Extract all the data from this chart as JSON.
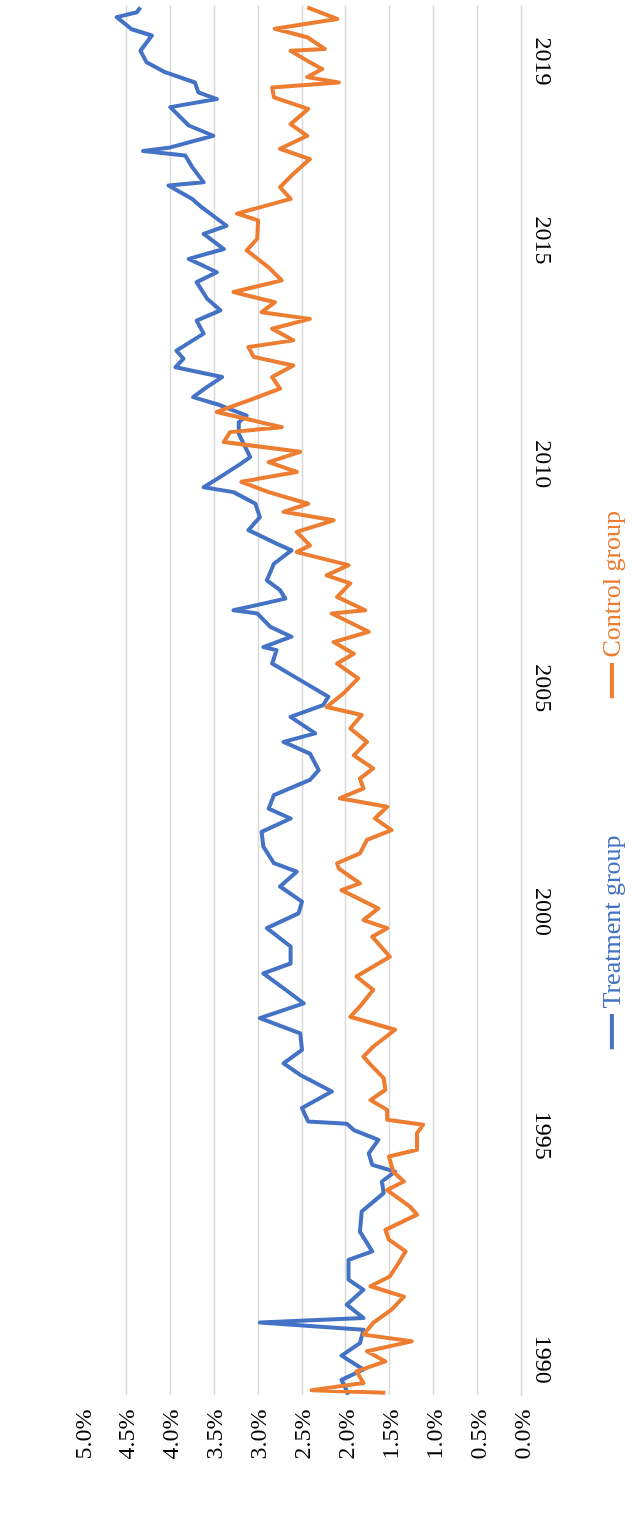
{
  "chart_data": {
    "type": "line",
    "xlim": [
      5,
      0
    ],
    "xticks": [
      {
        "value": 0,
        "label": "0.0%"
      },
      {
        "value": 0.5,
        "label": "0.5%"
      },
      {
        "value": 1,
        "label": "1.0%"
      },
      {
        "value": 1.5,
        "label": "1.5%"
      },
      {
        "value": 2,
        "label": "2.0%"
      },
      {
        "value": 2.5,
        "label": "2.5%"
      },
      {
        "value": 3,
        "label": "3.0%"
      },
      {
        "value": 3.5,
        "label": "3.5%"
      },
      {
        "value": 4,
        "label": "4.0%"
      },
      {
        "value": 4.5,
        "label": "4.5%"
      },
      {
        "value": 5,
        "label": "5.0%"
      }
    ],
    "ylim": [
      1989.2,
      2020.25
    ],
    "yticks": [
      1990,
      1995,
      2000,
      2005,
      2010,
      2015,
      2019
    ],
    "grid": "x",
    "legend": "right",
    "series": [
      {
        "name": "Treatment group",
        "color": "#4472c4",
        "values": [
          1989.22,
          1989.55,
          1989.78,
          1990.09,
          1990.37,
          1990.67,
          1990.83,
          1990.93,
          1991.23,
          1991.56,
          1991.79,
          1992.23,
          1992.42,
          1992.86,
          1993.31,
          1993.72,
          1993.98,
          1994.2,
          1994.35,
          1994.61,
          1994.91,
          1995.13,
          1995.27,
          1995.32,
          1995.62,
          1995.99,
          1996.25,
          1996.36,
          1996.62,
          1996.92,
          1997.29,
          1997.63,
          1997.96,
          1998.18,
          1998.63,
          1998.85,
          1999.23,
          1999.64,
          1999.97,
          2000.23,
          2000.57,
          2000.9,
          2001.09,
          2001.46,
          2001.79,
          2002.09,
          2002.31,
          2002.61,
          2002.95,
          2003.17,
          2003.54,
          2003.8,
          2003.99,
          2004.36,
          2004.62,
          2004.81,
          2005.18,
          2005.55,
          2005.85,
          2005.92,
          2006.15,
          2006.37,
          2006.67,
          2006.74,
          2007.0,
          2007.19,
          2007.41,
          2007.78,
          2008.08,
          2008.23,
          2008.53,
          2008.82,
          2009.12,
          2009.38,
          2009.49,
          2009.72,
          2010.01,
          2010.16,
          2010.68,
          2010.94,
          2011.09,
          2011.32,
          2011.5,
          2011.73,
          2011.95,
          2012.17,
          2012.36,
          2012.54,
          2012.92,
          2013.21,
          2013.44,
          2013.7,
          2014.07,
          2014.29,
          2014.59,
          2014.81,
          2015.15,
          2015.33,
          2015.74,
          2015.93,
          2016.23,
          2016.3,
          2016.64,
          2016.9,
          2017.0,
          2017.08,
          2017.34,
          2017.57,
          2017.98,
          2018.16,
          2018.31,
          2018.53,
          2018.76,
          2018.98,
          2019.24,
          2019.58,
          2019.72,
          2019.99,
          2020.1,
          2020.21
        ],
        "x": [
          1.97,
          2.05,
          1.8,
          2.05,
          1.84,
          1.8,
          2.98,
          1.8,
          1.99,
          1.8,
          1.97,
          1.97,
          1.7,
          1.84,
          1.82,
          1.57,
          1.59,
          1.44,
          1.7,
          1.74,
          1.63,
          1.91,
          1.99,
          2.43,
          2.5,
          2.16,
          2.41,
          2.52,
          2.71,
          2.5,
          2.52,
          2.98,
          2.48,
          2.63,
          2.94,
          2.63,
          2.63,
          2.9,
          2.54,
          2.5,
          2.75,
          2.56,
          2.82,
          2.94,
          2.96,
          2.63,
          2.88,
          2.82,
          2.41,
          2.31,
          2.41,
          2.71,
          2.35,
          2.63,
          2.26,
          2.2,
          2.52,
          2.84,
          2.79,
          2.94,
          2.62,
          2.86,
          3.01,
          3.28,
          2.69,
          2.75,
          2.9,
          2.82,
          2.62,
          2.79,
          3.11,
          2.98,
          3.03,
          3.28,
          3.62,
          3.43,
          3.2,
          3.09,
          3.22,
          3.22,
          3.13,
          3.43,
          3.74,
          3.58,
          3.41,
          3.94,
          3.85,
          3.93,
          3.62,
          3.7,
          3.43,
          3.58,
          3.7,
          3.47,
          3.79,
          3.39,
          3.62,
          3.36,
          3.64,
          3.75,
          4.02,
          3.62,
          3.75,
          3.83,
          4.31,
          4.0,
          3.51,
          3.79,
          4.0,
          3.47,
          3.68,
          3.72,
          4.06,
          4.27,
          4.34,
          4.21,
          4.44,
          4.61,
          4.38,
          4.34
        ]
      },
      {
        "name": "Control group",
        "color": "#ed7d31",
        "values": [
          1989.26,
          1989.32,
          1989.48,
          1989.74,
          1989.96,
          1990.19,
          1990.41,
          1990.56,
          1990.82,
          1991.12,
          1991.41,
          1991.64,
          1991.86,
          1992.16,
          1992.42,
          1992.68,
          1992.9,
          1993.24,
          1993.42,
          1993.79,
          1993.98,
          1994.2,
          1994.54,
          1994.69,
          1995.06,
          1995.25,
          1995.36,
          1995.58,
          1995.8,
          1996.03,
          1996.29,
          1996.55,
          1996.77,
          1996.99,
          1997.37,
          1997.66,
          1997.89,
          1998.26,
          1998.56,
          1999.0,
          1999.45,
          1999.64,
          1999.82,
          2000.08,
          2000.49,
          2000.64,
          2000.97,
          2001.09,
          2001.31,
          2001.61,
          2001.83,
          2002.09,
          2002.35,
          2002.54,
          2002.76,
          2002.98,
          2003.21,
          2003.5,
          2003.8,
          2004.1,
          2004.4,
          2004.58,
          2004.88,
          2005.22,
          2005.55,
          2005.77,
          2006.03,
          2006.26,
          2006.67,
          2006.74,
          2007.04,
          2007.34,
          2007.52,
          2007.75,
          2008.04,
          2008.19,
          2008.49,
          2008.75,
          2008.94,
          2009.12,
          2009.38,
          2009.61,
          2009.83,
          2010.05,
          2010.28,
          2010.5,
          2010.72,
          2010.83,
          2011.17,
          2011.47,
          2011.69,
          2011.95,
          2012.21,
          2012.4,
          2012.62,
          2012.77,
          2013.03,
          2013.25,
          2013.4,
          2013.62,
          2013.85,
          2014.11,
          2014.4,
          2014.78,
          2015.04,
          2015.45,
          2015.6,
          2015.93,
          2016.19,
          2016.45,
          2016.82,
          2017.05,
          2017.34,
          2017.6,
          2017.94,
          2018.2,
          2018.42,
          2018.53,
          2018.65,
          2018.83,
          2018.98,
          2019.24,
          2019.28,
          2019.54,
          2019.73,
          2019.95,
          2020.21
        ],
        "x": [
          1.55,
          2.39,
          1.8,
          1.88,
          1.55,
          1.76,
          1.25,
          1.8,
          1.69,
          1.48,
          1.34,
          1.72,
          1.5,
          1.4,
          1.32,
          1.51,
          1.55,
          1.19,
          1.27,
          1.53,
          1.34,
          1.46,
          1.51,
          1.19,
          1.19,
          1.12,
          1.53,
          1.53,
          1.72,
          1.55,
          1.57,
          1.7,
          1.8,
          1.69,
          1.44,
          1.95,
          1.84,
          1.69,
          1.88,
          1.5,
          1.7,
          1.53,
          1.8,
          1.63,
          2.05,
          1.84,
          2.08,
          2.1,
          1.84,
          1.76,
          1.48,
          1.67,
          1.53,
          2.07,
          1.8,
          1.84,
          1.69,
          1.91,
          1.76,
          1.95,
          1.82,
          2.22,
          2.03,
          1.86,
          2.1,
          1.91,
          2.14,
          1.74,
          2.16,
          1.78,
          2.1,
          1.95,
          2.22,
          1.97,
          2.56,
          2.41,
          2.56,
          2.14,
          2.71,
          2.43,
          2.88,
          3.19,
          2.56,
          2.88,
          2.52,
          3.39,
          3.32,
          2.73,
          3.47,
          3.05,
          2.75,
          2.84,
          2.6,
          3.05,
          3.11,
          2.6,
          2.84,
          2.41,
          2.96,
          2.81,
          3.28,
          2.73,
          2.88,
          3.13,
          3.01,
          3.0,
          3.24,
          2.63,
          2.75,
          2.62,
          2.41,
          2.75,
          2.44,
          2.63,
          2.43,
          2.82,
          2.84,
          2.08,
          2.44,
          2.27,
          2.41,
          2.63,
          2.24,
          2.44,
          2.81,
          2.1,
          2.44
        ]
      }
    ]
  }
}
